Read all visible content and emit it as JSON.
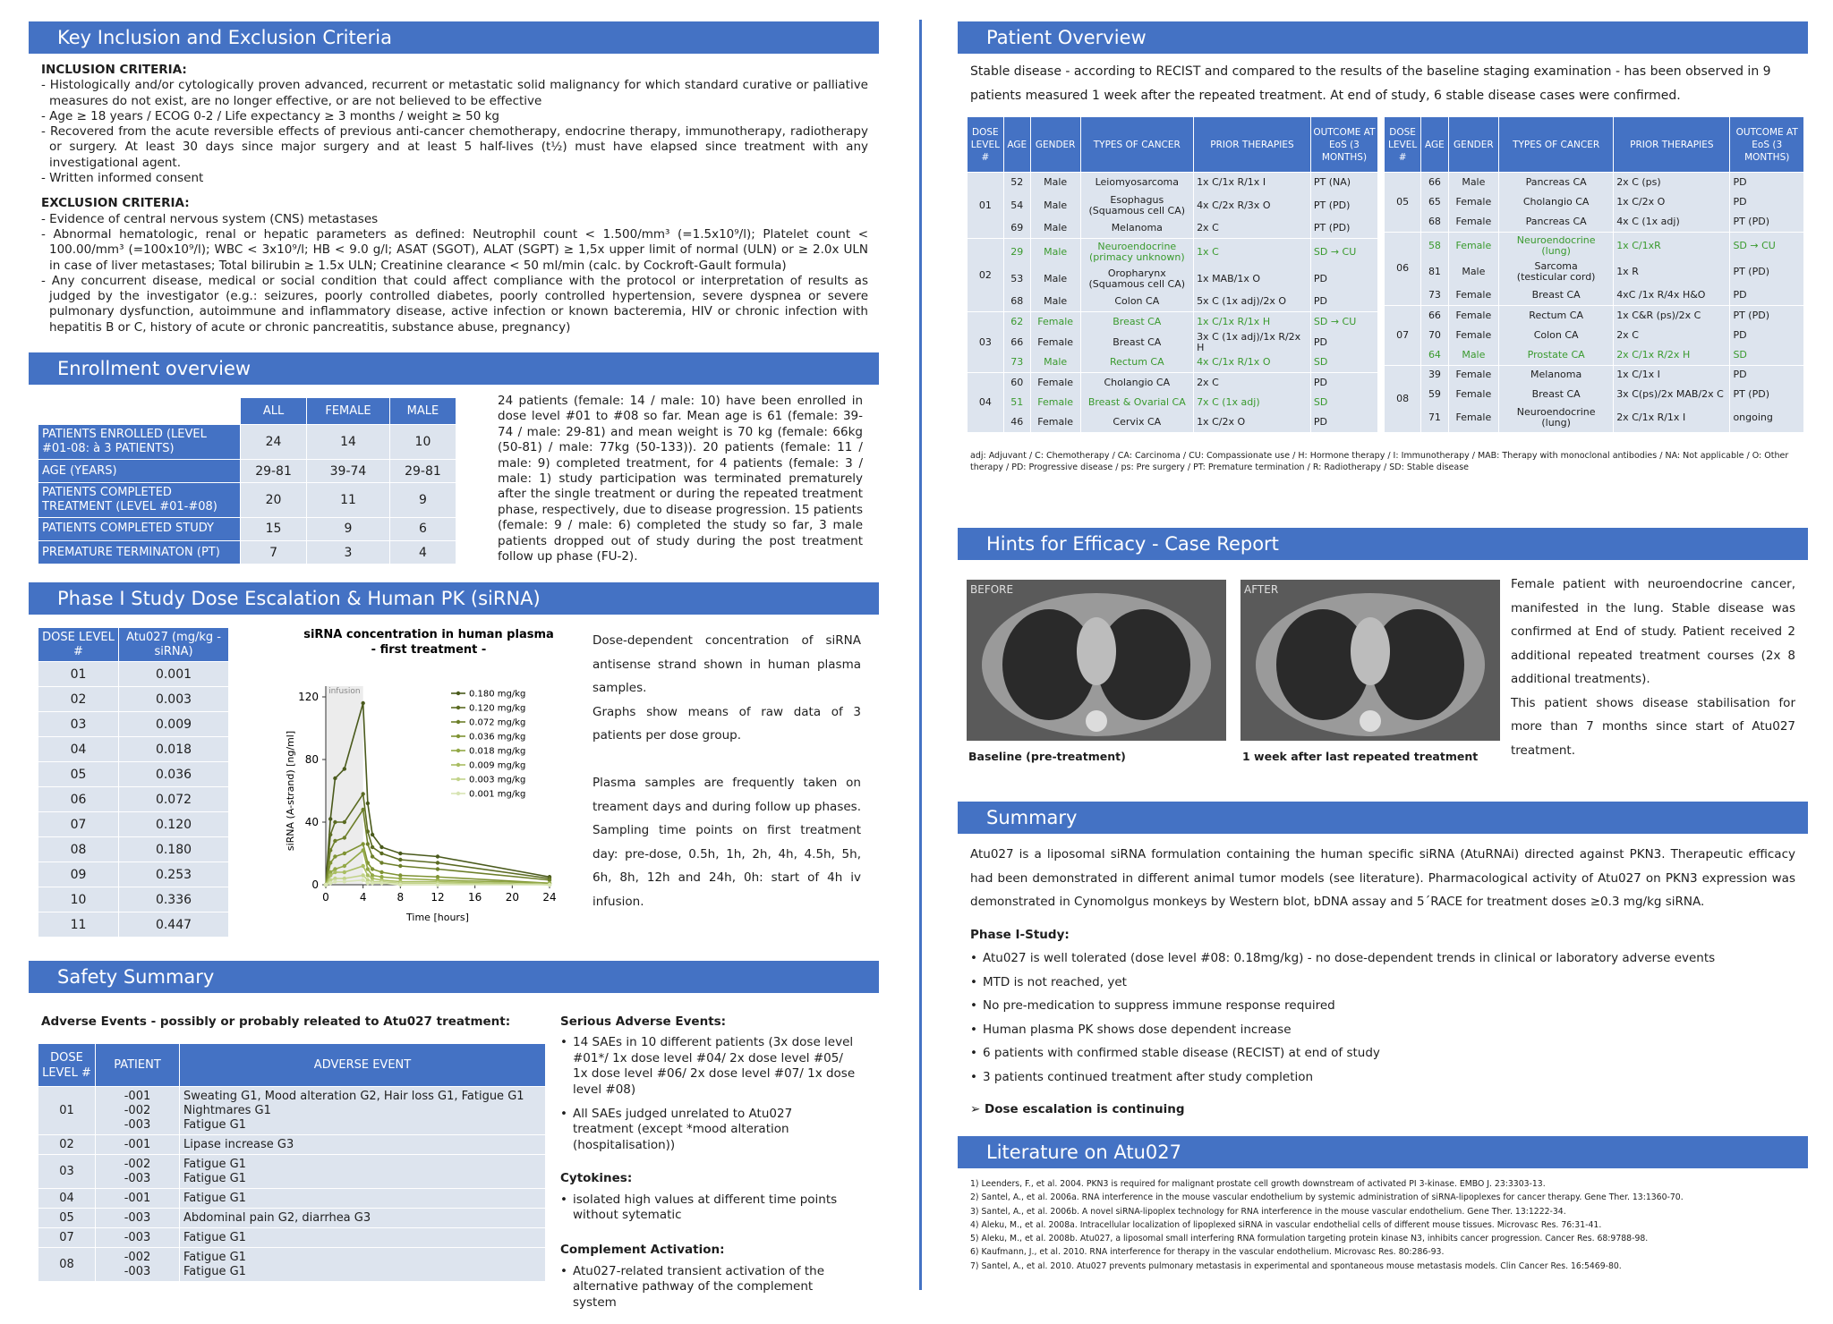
{
  "inclusion": {
    "title": "Key Inclusion and Exclusion Criteria",
    "inc_head": "INCLUSION CRITERIA:",
    "inc": [
      "- Histologically and/or cytologically proven advanced, recurrent or metastatic solid malignancy for which standard curative or palliative measures do not exist, are no longer effective, or are not believed to be effective",
      "- Age ≥ 18 years / ECOG 0-2 / Life expectancy ≥ 3 months / weight ≥ 50 kg",
      "- Recovered from the acute reversible effects of previous anti-cancer chemotherapy, endocrine therapy, immunotherapy, radiotherapy or surgery. At least 30 days since major surgery and at least 5 half-lives (t½) must have elapsed since treatment with any investigational agent.",
      "- Written informed consent"
    ],
    "exc_head": "EXCLUSION CRITERIA:",
    "exc": [
      "- Evidence of central nervous system (CNS) metastases",
      "- Abnormal hematologic, renal or hepatic parameters as defined: Neutrophil count < 1.500/mm³ (=1.5x10⁹/l); Platelet count < 100.00/mm³ (=100x10⁹/l); WBC < 3x10⁹/l; HB < 9.0 g/l; ASAT (SGOT), ALAT (SGPT) ≥ 1,5x upper limit of normal (ULN) or ≥ 2.0x ULN in case of liver metastases; Total bilirubin ≥ 1.5x ULN; Creatinine clearance < 50 ml/min (calc. by Cockroft-Gault formula)",
      "- Any concurrent disease, medical or social condition that could affect compliance with the protocol or interpretation of results as judged by the investigator (e.g.: seizures, poorly controlled diabetes, poorly controlled hypertension, severe dyspnea or severe pulmonary dysfunction, autoimmune and inflammatory disease, active infection or known bacteremia, HIV or chronic infection with hepatitis B or C, history of acute or chronic pancreatitis, substance abuse, pregnancy)"
    ]
  },
  "enrollment": {
    "title": "Enrollment overview",
    "cols": [
      "ALL",
      "FEMALE",
      "MALE"
    ],
    "rows": [
      {
        "label": "PATIENTS ENROLLED (LEVEL #01-08: à 3 PATIENTS)",
        "v": [
          "24",
          "14",
          "10"
        ]
      },
      {
        "label": "AGE (YEARS)",
        "v": [
          "29-81",
          "39-74",
          "29-81"
        ]
      },
      {
        "label": "PATIENTS COMPLETED TREATMENT (LEVEL #01-#08)",
        "v": [
          "20",
          "11",
          "9"
        ]
      },
      {
        "label": "PATIENTS COMPLETED STUDY",
        "v": [
          "15",
          "9",
          "6"
        ]
      },
      {
        "label": "PREMATURE  TERMINATON (PT)",
        "v": [
          "7",
          "3",
          "4"
        ]
      }
    ],
    "text": "24 patients (female: 14 / male: 10) have been enrolled in dose level #01 to #08 so far. Mean age is 61 (female: 39-74 / male: 29-81) and mean weight is 70 kg (female: 66kg (50-81) / male: 77kg (50-133)). 20 patients (female: 11 / male: 9) completed treatment, for 4 patients (female: 3 / male: 1) study participation was terminated prematurely after the single treatment or during the repeated treatment phase, respectively, due to disease progression. 15 patients (female: 9 / male: 6) completed the study so far, 3 male patients dropped out of study during the post treatment follow up phase (FU-2)."
  },
  "dose": {
    "title": "Phase I Study Dose Escalation  & Human PK (siRNA)",
    "h1": "DOSE LEVEL #",
    "h2": "Atu027 (mg/kg - siRNA)",
    "rows": [
      [
        "01",
        "0.001"
      ],
      [
        "02",
        "0.003"
      ],
      [
        "03",
        "0.009"
      ],
      [
        "04",
        "0.018"
      ],
      [
        "05",
        "0.036"
      ],
      [
        "06",
        "0.072"
      ],
      [
        "07",
        "0.120"
      ],
      [
        "08",
        "0.180"
      ],
      [
        "09",
        "0.253"
      ],
      [
        "10",
        "0.336"
      ],
      [
        "11",
        "0.447"
      ]
    ],
    "text": [
      "Dose-dependent concentration of siRNA antisense strand shown in human plasma samples.",
      "Graphs show means of raw data of 3 patients per dose group.",
      "",
      "Plasma samples are frequently taken on treament days and during follow up phases. Sampling time points on first treatment day: pre-dose, 0.5h, 1h, 2h, 4h, 4.5h, 5h, 6h, 8h, 12h and 24h, 0h: start of 4h iv infusion."
    ]
  },
  "chart_data": {
    "type": "line",
    "title": "siRNA concentration in human plasma",
    "subtitle": "- first treatment -",
    "xlabel": "Time [hours]",
    "ylabel": "siRNA  (A-strand) [ng/ml]",
    "xlim": [
      0,
      24
    ],
    "ylim": [
      0,
      120
    ],
    "xticks": [
      0,
      4,
      8,
      12,
      16,
      20,
      24
    ],
    "yticks": [
      0,
      40,
      80,
      120
    ],
    "annotation": "infusion",
    "x": [
      0,
      0.5,
      1,
      2,
      4,
      4.5,
      5,
      6,
      8,
      12,
      24
    ],
    "series": [
      {
        "name": "0.180 mg/kg",
        "color": "#4a5a1c",
        "values": [
          0,
          42,
          68,
          74,
          116,
          52,
          32,
          24,
          20,
          18,
          5
        ]
      },
      {
        "name": "0.120 mg/kg",
        "color": "#5b6b22",
        "values": [
          0,
          32,
          40,
          40,
          58,
          34,
          24,
          20,
          16,
          14,
          4
        ]
      },
      {
        "name": "0.072 mg/kg",
        "color": "#6d7f2a",
        "values": [
          0,
          22,
          28,
          30,
          48,
          26,
          18,
          14,
          12,
          10,
          3
        ]
      },
      {
        "name": "0.036 mg/kg",
        "color": "#7f9333",
        "values": [
          0,
          14,
          18,
          20,
          26,
          14,
          10,
          8,
          6,
          5,
          1
        ]
      },
      {
        "name": "0.018 mg/kg",
        "color": "#92a845",
        "values": [
          0,
          8,
          10,
          12,
          22,
          10,
          6,
          5,
          4,
          3,
          1
        ]
      },
      {
        "name": "0.009 mg/kg",
        "color": "#a9bd62",
        "values": [
          0,
          6,
          8,
          8,
          12,
          6,
          4,
          3,
          2,
          2,
          0
        ]
      },
      {
        "name": "0.003 mg/kg",
        "color": "#c2d38a",
        "values": [
          0,
          3,
          4,
          4,
          6,
          3,
          2,
          2,
          1,
          1,
          0
        ]
      },
      {
        "name": "0.001 mg/kg",
        "color": "#d8e4b4",
        "values": [
          0,
          1,
          2,
          2,
          3,
          1,
          1,
          1,
          0,
          0,
          0
        ]
      }
    ]
  },
  "safety": {
    "title": "Safety Summary",
    "ae_head": "Adverse Events - possibly or probably releated to Atu027 treatment:",
    "cols": [
      "DOSE LEVEL #",
      "PATIENT",
      "ADVERSE EVENT"
    ],
    "rows": [
      {
        "lvl": "01",
        "pat": "-001\n-002\n-003",
        "ev": "Sweating G1, Mood alteration G2, Hair loss G1, Fatigue G1\nNightmares G1\nFatigue G1"
      },
      {
        "lvl": "02",
        "pat": "-001",
        "ev": "Lipase increase G3"
      },
      {
        "lvl": "03",
        "pat": "-002\n-003",
        "ev": "Fatigue G1\nFatigue G1"
      },
      {
        "lvl": "04",
        "pat": "-001",
        "ev": "Fatigue G1"
      },
      {
        "lvl": "05",
        "pat": "-003",
        "ev": "Abdominal pain G2, diarrhea G3"
      },
      {
        "lvl": "07",
        "pat": "-003",
        "ev": "Fatigue G1"
      },
      {
        "lvl": "08",
        "pat": "-002\n-003",
        "ev": "Fatigue G1\nFatigue G1"
      }
    ],
    "sae_head": "Serious Adverse Events:",
    "sae": [
      "14 SAEs in 10 different patients (3x dose level #01*/ 1x dose level #04/ 2x dose level #05/ 1x dose level #06/ 2x dose level #07/ 1x dose level #08)",
      "All SAEs judged unrelated to Atu027 treatment (except *mood alteration (hospitalisation))"
    ],
    "cyt_head": "Cytokines:",
    "cyt": [
      "isolated high values at different time points without sytematic"
    ],
    "comp_head": "Complement Activation:",
    "comp": [
      "Atu027-related transient activation of the alternative pathway of the complement system"
    ]
  },
  "patients": {
    "title": "Patient Overview",
    "intro": "Stable disease - according to RECIST and compared to the results of the baseline staging examination - has been observed in 9 patients measured 1 week after the repeated treatment. At end of study, 6 stable disease cases were confirmed.",
    "cols": [
      "DOSE LEVEL #",
      "AGE",
      "GENDER",
      "TYPES OF CANCER",
      "PRIOR THERAPIES",
      "OUTCOME AT EoS (3 MONTHS)"
    ],
    "left": [
      {
        "lvl": "01",
        "rows": [
          [
            "52",
            "Male",
            "Leiomyosarcoma",
            "1x C/1x R/1x I",
            "PT (NA)",
            0
          ],
          [
            "54",
            "Male",
            "Esophagus\n(Squamous cell CA)",
            "4x C/2x R/3x O",
            "PT (PD)",
            0
          ],
          [
            "69",
            "Male",
            "Melanoma",
            "2x C",
            "PT (PD)",
            0
          ]
        ]
      },
      {
        "lvl": "02",
        "rows": [
          [
            "29",
            "Male",
            "Neuroendocrine\n(primacy unknown)",
            "1x C",
            "SD → CU",
            1
          ],
          [
            "53",
            "Male",
            "Oropharynx\n(Squamous cell CA)",
            "1x MAB/1x O",
            "PD",
            0
          ],
          [
            "68",
            "Male",
            "Colon CA",
            "5x C (1x adj)/2x O",
            "PD",
            0
          ]
        ]
      },
      {
        "lvl": "03",
        "rows": [
          [
            "62",
            "Female",
            "Breast CA",
            "1x C/1x R/1x H",
            "SD → CU",
            1
          ],
          [
            "66",
            "Female",
            "Breast CA",
            "3x C (1x adj)/1x R/2x H",
            "PD",
            0
          ],
          [
            "73",
            "Male",
            "Rectum CA",
            "4x C/1x R/1x O",
            "SD",
            1
          ]
        ]
      },
      {
        "lvl": "04",
        "rows": [
          [
            "60",
            "Female",
            "Cholangio CA",
            "2x C",
            "PD",
            0
          ],
          [
            "51",
            "Female",
            "Breast & Ovarial CA",
            "7x C (1x adj)",
            "SD",
            1
          ],
          [
            "46",
            "Female",
            "Cervix CA",
            "1x C/2x O",
            "PD",
            0
          ]
        ]
      }
    ],
    "right": [
      {
        "lvl": "05",
        "rows": [
          [
            "66",
            "Male",
            "Pancreas CA",
            "2x C (ps)",
            "PD",
            0
          ],
          [
            "65",
            "Female",
            "Cholangio CA",
            "1x C/2x O",
            "PD",
            0
          ],
          [
            "68",
            "Female",
            "Pancreas CA",
            "4x C (1x adj)",
            "PT (PD)",
            0
          ]
        ]
      },
      {
        "lvl": "06",
        "rows": [
          [
            "58",
            "Female",
            "Neuroendocrine\n(lung)",
            "1x C/1xR",
            "SD → CU",
            1
          ],
          [
            "81",
            "Male",
            "Sarcoma\n(testicular cord)",
            "1x R",
            "PT (PD)",
            0
          ],
          [
            "73",
            "Female",
            "Breast CA",
            "4xC /1x R/4x H&O",
            "PD",
            0
          ]
        ]
      },
      {
        "lvl": "07",
        "rows": [
          [
            "66",
            "Female",
            "Rectum CA",
            "1x C&R (ps)/2x C",
            "PT (PD)",
            0
          ],
          [
            "70",
            "Female",
            "Colon CA",
            "2x C",
            "PD",
            0
          ],
          [
            "64",
            "Male",
            "Prostate CA",
            "2x C/1x R/2x H",
            "SD",
            1
          ]
        ]
      },
      {
        "lvl": "08",
        "rows": [
          [
            "39",
            "Female",
            "Melanoma",
            "1x C/1x I",
            "PD",
            0
          ],
          [
            "59",
            "Female",
            "Breast CA",
            "3x C(ps)/2x MAB/2x C",
            "PT (PD)",
            0
          ],
          [
            "71",
            "Female",
            "Neuroendocrine\n(lung)",
            "2x C/1x R/1x I",
            "ongoing",
            0
          ]
        ]
      }
    ],
    "abbr": "adj: Adjuvant / C: Chemotherapy / CA: Carcinoma / CU: Compassionate use / H: Hormone therapy / I: Immunotherapy / MAB: Therapy with monoclonal antibodies / NA: Not applicable / O: Other therapy / PD: Progressive disease / ps: Pre surgery / PT: Premature termination / R: Radiotherapy / SD: Stable disease"
  },
  "efficacy": {
    "title": "Hints for Efficacy - Case Report",
    "before": "BEFORE",
    "after": "AFTER",
    "cap1": "Baseline (pre-treatment)",
    "cap2": "1 week after last repeated treatment",
    "text1": "Female patient with neuroendocrine cancer, manifested in the lung. Stable disease was confirmed at End of study. Patient received 2 additional repeated treatment courses (2x 8 additional treatments).",
    "text2": "This patient shows disease stabilisation for more than 7 months since start of Atu027 treatment."
  },
  "summary": {
    "title": "Summary",
    "intro": "Atu027 is a liposomal siRNA formulation containing the human specific siRNA (AtuRNAi) directed against PKN3. Therapeutic efficacy had been demonstrated in different animal tumor models (see literature). Pharmacological activity of Atu027 on PKN3 expression was demonstrated in Cynomolgus monkeys by Western blot, bDNA assay and 5´RACE for treatment doses ≥0.3 mg/kg siRNA.",
    "phase": "Phase I-Study:",
    "items": [
      "Atu027 is well tolerated  (dose level #08: 0.18mg/kg) - no dose-dependent trends in clinical or laboratory adverse events",
      "MTD is not reached, yet",
      "No pre-medication to suppress immune response required",
      "Human plasma PK shows dose dependent increase",
      "6 patients with confirmed stable disease (RECIST) at end of study",
      "3 patients continued treatment after study completion"
    ],
    "final": "Dose escalation is continuing"
  },
  "literature": {
    "title": "Literature on Atu027",
    "refs": [
      "1) Leenders, F., et al. 2004. PKN3 is required for malignant prostate cell growth downstream of activated PI 3-kinase. EMBO J. 23:3303-13.",
      "2) Santel, A., et al. 2006a. RNA interference in the mouse vascular endothelium by systemic administration of siRNA-lipoplexes for cancer therapy. Gene Ther. 13:1360-70.",
      "3) Santel, A., et al. 2006b. A novel siRNA-lipoplex technology for RNA interference in the mouse vascular endothelium. Gene Ther. 13:1222-34.",
      "4) Aleku, M., et al. 2008a. Intracellular localization of lipoplexed siRNA in vascular endothelial cells of different mouse tissues. Microvasc Res. 76:31-41.",
      "5) Aleku, M., et al. 2008b. Atu027, a liposomal small interfering RNA formulation targeting protein kinase N3, inhibits cancer progression. Cancer Res. 68:9788-98.",
      "6) Kaufmann, J., et al. 2010. RNA interference for therapy in the vascular endothelium. Microvasc Res. 80:286-93.",
      "7) Santel, A., et al. 2010. Atu027 prevents pulmonary metastasis in experimental and spontaneous mouse metastasis models. Clin Cancer Res. 16:5469-80."
    ]
  }
}
